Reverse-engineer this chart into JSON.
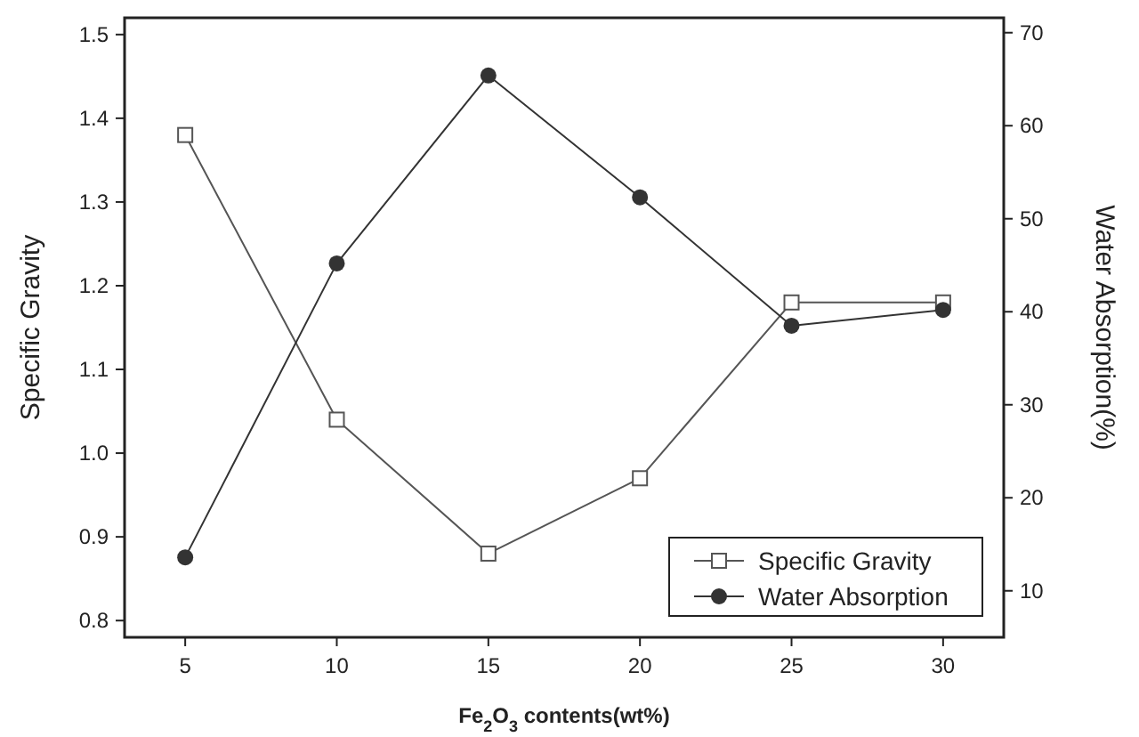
{
  "chart_data": {
    "type": "line",
    "xlabel": "Fe$_{2}$O$_{3}$ contents(wt%)",
    "ylabel": "Specific Gravity",
    "y2label": "Water Absorption(%)",
    "x": [
      5,
      10,
      15,
      20,
      25,
      30
    ],
    "series": [
      {
        "name": "Specific Gravity",
        "color": "#555555",
        "marker": "square",
        "values": [
          1.38,
          1.04,
          0.88,
          0.97,
          1.18,
          1.18
        ]
      },
      {
        "name": "Water Absorption",
        "color": "#333333",
        "marker": "circle",
        "axis": "y2",
        "values": [
          13.6,
          45.2,
          65.4,
          52.3,
          38.5,
          40.2
        ]
      }
    ],
    "xlim": [
      3,
      32
    ],
    "xticks": [
      5,
      10,
      15,
      20,
      25,
      30
    ],
    "ylim": [
      0.78,
      1.52
    ],
    "yticks": [
      0.8,
      0.9,
      {
        "value": 1,
        "label": "1.0"
      },
      1.1,
      1.2,
      1.3,
      1.4,
      1.5
    ],
    "y2lim": [
      5,
      71.6
    ],
    "y2ticks": [
      10,
      20,
      30,
      40,
      50,
      60,
      70
    ],
    "grid": false,
    "legend": "bottom right"
  }
}
